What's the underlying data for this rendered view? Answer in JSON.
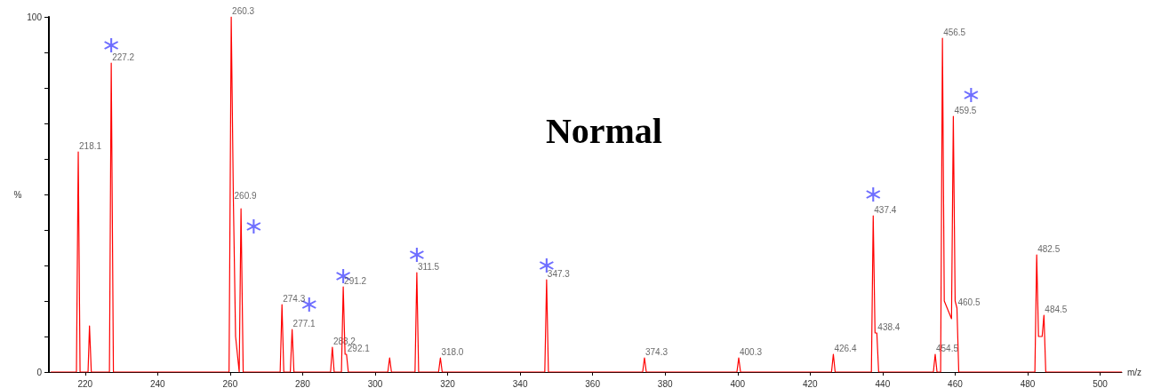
{
  "chart_data": {
    "type": "line",
    "title": "Normal",
    "xlabel": "m/z",
    "ylabel": "%",
    "xlim": [
      210,
      506
    ],
    "xticks": [
      220,
      240,
      260,
      280,
      300,
      320,
      340,
      360,
      380,
      400,
      420,
      440,
      460,
      480,
      500
    ],
    "ylim": [
      0,
      100
    ],
    "yticks": [
      0,
      {
        "value": 10,
        "label": null
      },
      {
        "value": 20,
        "label": null
      },
      {
        "value": 30,
        "label": null
      },
      {
        "value": 40,
        "label": null
      },
      {
        "value": 50,
        "label": null
      },
      {
        "value": 60,
        "label": null
      },
      {
        "value": 70,
        "label": null
      },
      {
        "value": 80,
        "label": null
      },
      {
        "value": 90,
        "label": null
      },
      100
    ],
    "marker": "none",
    "line_style": "solid",
    "series": [
      {
        "color": "#ff0000",
        "x": [
          210.5,
          217.6,
          218.1,
          218.6,
          220.8,
          221.2,
          221.7,
          226.7,
          227.2,
          227.8,
          259.7,
          260.3,
          260.9,
          261.5,
          262.5,
          263.0,
          263.6,
          273.8,
          274.3,
          274.8,
          276.6,
          277.1,
          277.6,
          287.7,
          288.2,
          288.7,
          290.7,
          291.2,
          291.7,
          292.1,
          292.6,
          303.5,
          304,
          304.5,
          311,
          311.5,
          312,
          317.5,
          318,
          318.5,
          346.8,
          347.3,
          347.8,
          373.8,
          374.3,
          374.8,
          399.8,
          400.3,
          400.8,
          425.9,
          426.4,
          426.9,
          436.9,
          437.4,
          437.9,
          438.4,
          438.9,
          454,
          454.5,
          455,
          456,
          456.5,
          457,
          459,
          459.5,
          460,
          460.5,
          461,
          482,
          482.5,
          483,
          484,
          484.5,
          485,
          506
        ],
        "values": [
          0,
          0,
          62,
          0,
          0,
          13,
          0,
          0,
          87,
          0,
          0,
          100,
          48,
          10,
          0,
          46,
          0,
          0,
          19,
          0,
          0,
          12,
          0,
          0,
          7,
          0,
          0,
          24,
          5,
          5,
          0,
          0,
          4,
          0,
          0,
          28,
          0,
          0,
          4,
          0,
          0,
          26,
          0,
          0,
          4,
          0,
          0,
          4,
          0,
          0,
          5,
          0,
          0,
          44,
          11,
          11,
          0,
          0,
          5,
          0,
          0,
          94,
          20,
          15,
          72,
          20,
          18,
          0,
          0,
          33,
          10,
          10,
          16,
          0,
          0
        ]
      },
      {
        "type": "scatter",
        "color": "#4a4aff",
        "marker": "cross",
        "x": [
          227.2,
          266.5,
          281.8,
          291.2,
          311.5,
          347.3,
          437.4,
          464.4
        ],
        "values": [
          92,
          41,
          19,
          27,
          33,
          30,
          50,
          78
        ]
      }
    ],
    "annotations": [
      {
        "text": "218.1",
        "x": 218.1,
        "y": 62
      },
      {
        "text": "227.2",
        "x": 227.2,
        "y": 87
      },
      {
        "text": "260.3",
        "x": 260.3,
        "y": 100
      },
      {
        "text": "260.9",
        "x": 260.9,
        "y": 48
      },
      {
        "text": "274.3",
        "x": 274.3,
        "y": 19
      },
      {
        "text": "277.1",
        "x": 277.1,
        "y": 12
      },
      {
        "text": "288.2",
        "x": 288.2,
        "y": 7
      },
      {
        "text": "291.2",
        "x": 291.2,
        "y": 24
      },
      {
        "text": "292.1",
        "x": 292.1,
        "y": 5
      },
      {
        "text": "311.5",
        "x": 311.5,
        "y": 28
      },
      {
        "text": "318.0",
        "x": 318.0,
        "y": 4
      },
      {
        "text": "347.3",
        "x": 347.3,
        "y": 26
      },
      {
        "text": "374.3",
        "x": 374.3,
        "y": 4
      },
      {
        "text": "400.3",
        "x": 400.3,
        "y": 4
      },
      {
        "text": "426.4",
        "x": 426.4,
        "y": 5
      },
      {
        "text": "437.4",
        "x": 437.4,
        "y": 44
      },
      {
        "text": "438.4",
        "x": 438.4,
        "y": 11
      },
      {
        "text": "454.5",
        "x": 454.5,
        "y": 5
      },
      {
        "text": "456.5",
        "x": 456.5,
        "y": 94
      },
      {
        "text": "459.5",
        "x": 459.5,
        "y": 72
      },
      {
        "text": "460.5",
        "x": 460.5,
        "y": 18
      },
      {
        "text": "482.5",
        "x": 482.5,
        "y": 33
      },
      {
        "text": "484.5",
        "x": 484.5,
        "y": 16
      }
    ]
  }
}
